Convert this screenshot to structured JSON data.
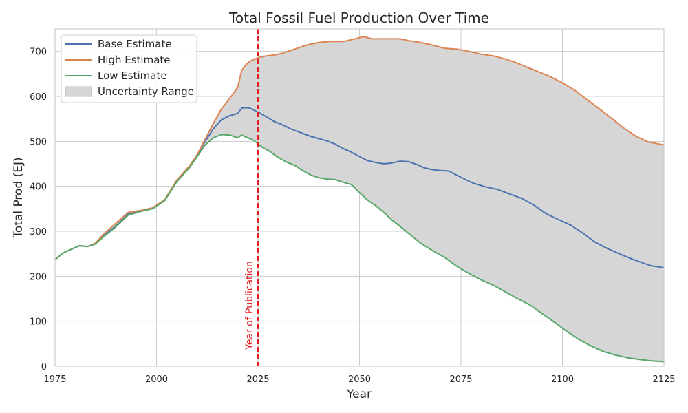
{
  "chart_data": {
    "type": "line",
    "title": "Total Fossil Fuel Production Over Time",
    "xlabel": "Year",
    "ylabel": "Total Prod (EJ)",
    "xlim": [
      1975,
      2125
    ],
    "ylim": [
      0,
      750
    ],
    "xticks": [
      1975,
      2000,
      2025,
      2050,
      2075,
      2100,
      2125
    ],
    "yticks": [
      0,
      100,
      200,
      300,
      400,
      500,
      600,
      700
    ],
    "grid": true,
    "legend_position": "upper-left",
    "annotation": {
      "x": 2025,
      "label": "Year of Publication",
      "color": "#e41a1c",
      "style": "dashed vertical line"
    },
    "band": {
      "name": "Uncertainty Range",
      "lower": "Low Estimate",
      "upper": "High Estimate",
      "color": "#d6d6d6"
    },
    "series": [
      {
        "name": "Base Estimate",
        "color": "#4c72b0",
        "x": [
          1975,
          1977,
          1979,
          1981,
          1983,
          1985,
          1987,
          1990,
          1993,
          1996,
          1999,
          2002,
          2005,
          2008,
          2010,
          2012,
          2014,
          2016,
          2018,
          2020,
          2021,
          2022,
          2023,
          2025,
          2027,
          2029,
          2031,
          2033,
          2035,
          2038,
          2040,
          2042,
          2044,
          2046,
          2048,
          2050,
          2052,
          2054,
          2056,
          2058,
          2060,
          2062,
          2064,
          2066,
          2068,
          2070,
          2072,
          2075,
          2078,
          2081,
          2084,
          2087,
          2090,
          2093,
          2096,
          2099,
          2102,
          2105,
          2108,
          2111,
          2114,
          2117,
          2120,
          2122,
          2125
        ],
        "y": [
          237,
          252,
          260,
          268,
          266,
          272,
          290,
          312,
          338,
          345,
          350,
          368,
          412,
          442,
          470,
          500,
          528,
          548,
          557,
          562,
          574,
          575,
          574,
          565,
          555,
          544,
          537,
          528,
          521,
          511,
          506,
          501,
          494,
          484,
          476,
          466,
          457,
          453,
          450,
          452,
          456,
          455,
          449,
          441,
          437,
          435,
          434,
          420,
          407,
          399,
          393,
          383,
          373,
          358,
          339,
          326,
          314,
          296,
          276,
          262,
          250,
          239,
          229,
          223,
          219
        ]
      },
      {
        "name": "High Estimate",
        "color": "#dd8452",
        "x": [
          1975,
          1977,
          1979,
          1981,
          1983,
          1985,
          1987,
          1990,
          1993,
          1996,
          1999,
          2002,
          2005,
          2008,
          2010,
          2012,
          2014,
          2016,
          2018,
          2020,
          2021,
          2022,
          2023,
          2025,
          2027,
          2029,
          2031,
          2033,
          2035,
          2037,
          2040,
          2043,
          2046,
          2049,
          2051,
          2053,
          2056,
          2058,
          2060,
          2062,
          2065,
          2068,
          2071,
          2074,
          2077,
          2080,
          2083,
          2086,
          2088,
          2091,
          2094,
          2097,
          2100,
          2103,
          2106,
          2109,
          2112,
          2115,
          2118,
          2121,
          2125
        ],
        "y": [
          237,
          252,
          260,
          268,
          266,
          274,
          294,
          318,
          342,
          346,
          352,
          370,
          414,
          444,
          470,
          505,
          540,
          572,
          595,
          620,
          658,
          670,
          678,
          686,
          690,
          692,
          696,
          702,
          708,
          714,
          720,
          722,
          722,
          728,
          733,
          728,
          728,
          728,
          728,
          724,
          720,
          714,
          707,
          705,
          700,
          694,
          690,
          683,
          677,
          666,
          655,
          644,
          630,
          614,
          593,
          573,
          552,
          530,
          512,
          499,
          492
        ]
      },
      {
        "name": "Low Estimate",
        "color": "#55a868",
        "x": [
          1975,
          1977,
          1979,
          1981,
          1983,
          1985,
          1987,
          1990,
          1993,
          1996,
          1999,
          2002,
          2005,
          2008,
          2010,
          2012,
          2014,
          2016,
          2018,
          2020,
          2021,
          2022,
          2024,
          2026,
          2028,
          2030,
          2032,
          2034,
          2036,
          2038,
          2040,
          2042,
          2044,
          2046,
          2048,
          2050,
          2052,
          2054,
          2056,
          2058,
          2060,
          2062,
          2065,
          2068,
          2071,
          2074,
          2077,
          2080,
          2083,
          2086,
          2089,
          2092,
          2095,
          2098,
          2101,
          2104,
          2107,
          2110,
          2113,
          2116,
          2119,
          2122,
          2125
        ],
        "y": [
          237,
          252,
          260,
          268,
          266,
          272,
          288,
          310,
          336,
          344,
          350,
          368,
          410,
          440,
          466,
          492,
          508,
          515,
          514,
          508,
          514,
          510,
          502,
          487,
          477,
          464,
          454,
          447,
          435,
          425,
          419,
          416,
          415,
          409,
          404,
          386,
          369,
          357,
          342,
          325,
          311,
          296,
          274,
          257,
          242,
          222,
          206,
          192,
          180,
          165,
          150,
          136,
          117,
          98,
          78,
          60,
          45,
          33,
          25,
          19,
          15,
          12,
          10
        ]
      }
    ]
  }
}
